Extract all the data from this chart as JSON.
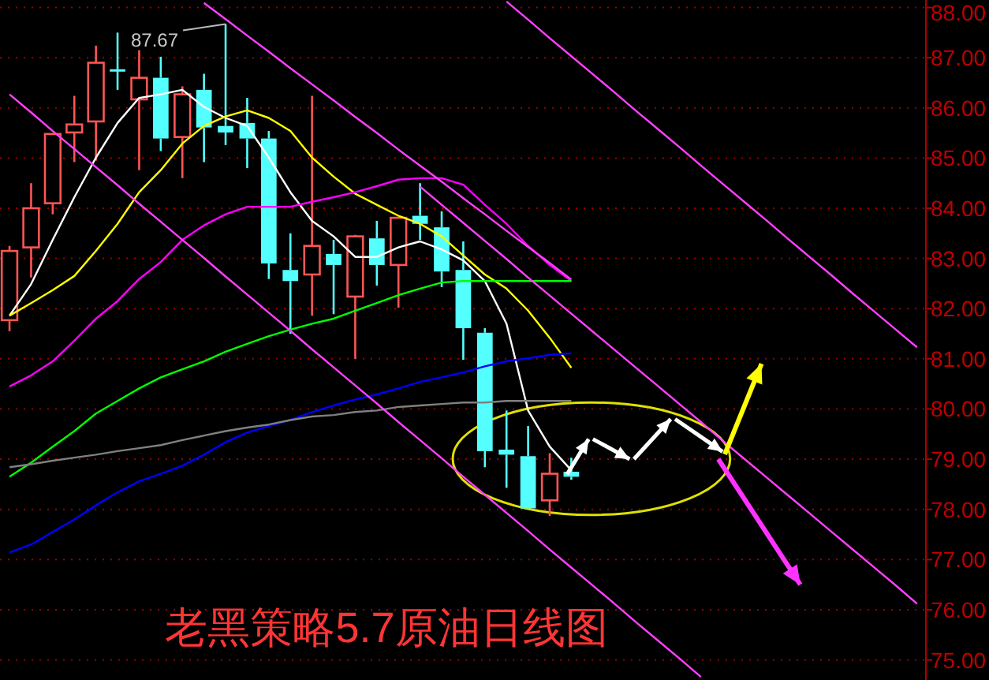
{
  "chart_data": {
    "type": "candlestick",
    "title": "老黑策略5.7原油日线图",
    "categories": [
      null,
      null,
      null,
      null,
      null,
      null,
      null,
      null,
      null,
      null,
      null,
      null,
      null,
      null,
      null,
      null,
      null,
      null,
      null,
      null,
      null,
      null,
      null,
      null,
      null,
      null,
      null,
      null,
      null,
      null,
      null,
      null,
      null,
      null,
      null,
      null,
      null,
      null,
      null,
      null,
      null,
      null,
      null
    ],
    "ohlc": [
      [
        81.77,
        83.25,
        81.55,
        83.15
      ],
      [
        83.22,
        84.5,
        82.62,
        84.0
      ],
      [
        84.1,
        85.48,
        83.88,
        85.48
      ],
      [
        85.51,
        86.24,
        84.92,
        85.67
      ],
      [
        85.73,
        87.24,
        84.95,
        86.9
      ],
      [
        86.77,
        87.5,
        86.36,
        86.77
      ],
      [
        86.17,
        87.15,
        84.76,
        86.6
      ],
      [
        86.6,
        87.02,
        85.14,
        85.39
      ],
      [
        85.42,
        86.43,
        84.6,
        86.27
      ],
      [
        86.36,
        86.68,
        84.92,
        85.61
      ],
      [
        85.64,
        87.67,
        85.26,
        85.51
      ],
      [
        85.7,
        86.2,
        84.8,
        85.39
      ],
      [
        85.39,
        85.54,
        82.59,
        82.9
      ],
      [
        82.77,
        83.5,
        81.5,
        82.55
      ],
      [
        82.68,
        86.24,
        81.86,
        83.25
      ],
      [
        83.09,
        83.37,
        81.89,
        82.87
      ],
      [
        82.24,
        83.47,
        81.0,
        83.44
      ],
      [
        83.4,
        83.75,
        82.46,
        82.87
      ],
      [
        82.87,
        83.81,
        82.02,
        83.81
      ],
      [
        83.85,
        84.5,
        83.37,
        83.69
      ],
      [
        83.62,
        83.94,
        82.43,
        82.74
      ],
      [
        82.77,
        83.34,
        80.98,
        81.61
      ],
      [
        81.52,
        81.61,
        78.84,
        79.16
      ],
      [
        79.19,
        79.97,
        78.43,
        79.09
      ],
      [
        79.06,
        79.66,
        78.02,
        78.02
      ],
      [
        78.18,
        79.12,
        77.87,
        78.71
      ],
      [
        78.75,
        79.03,
        78.59,
        78.65
      ],
      null,
      null,
      null,
      null,
      null,
      null,
      null,
      null,
      null,
      null,
      null,
      null,
      null,
      null,
      null,
      null
    ],
    "colors": [
      "#ff5555",
      "#ff5555",
      "#ff5555",
      "#ff5555",
      "#ff5555",
      "#54ffff",
      "#ff5555",
      "#54ffff",
      "#ff5555",
      "#54ffff",
      "#54ffff",
      "#54ffff",
      "#54ffff",
      "#54ffff",
      "#ff5555",
      "#54ffff",
      "#ff5555",
      "#54ffff",
      "#ff5555",
      "#54ffff",
      "#54ffff",
      "#54ffff",
      "#54ffff",
      "#54ffff",
      "#54ffff",
      "#ff5555",
      "#54ffff",
      null,
      null,
      null,
      null,
      null,
      null,
      null,
      null,
      null,
      null,
      null,
      null,
      null,
      null,
      null,
      null
    ],
    "series": [
      {
        "type": "line",
        "color": "#ffffff",
        "values": [
          81.86,
          82.49,
          83.37,
          84.22,
          85.01,
          85.7,
          86.2,
          86.27,
          86.36,
          86.02,
          85.8,
          85.64,
          85.01,
          84.32,
          83.75,
          83.44,
          83.03,
          83.03,
          83.22,
          83.34,
          83.18,
          82.96,
          82.55,
          81.7,
          79.97,
          79.25,
          78.78,
          null,
          null,
          null,
          null,
          null,
          null,
          null,
          null,
          null,
          null,
          null,
          null,
          null,
          null,
          null,
          null
        ]
      },
      {
        "type": "line",
        "color": "#ffff00",
        "values": [
          81.86,
          82.11,
          82.37,
          82.65,
          83.15,
          83.69,
          84.32,
          84.76,
          85.29,
          85.64,
          85.83,
          85.95,
          85.8,
          85.54,
          85.01,
          84.63,
          84.29,
          84.07,
          83.85,
          83.69,
          83.44,
          83.06,
          82.68,
          82.4,
          81.96,
          81.42,
          80.82,
          null,
          null,
          null,
          null,
          null,
          null,
          null,
          null,
          null,
          null,
          null,
          null,
          null,
          null,
          null,
          null
        ]
      },
      {
        "type": "line",
        "color": "#ff00ff",
        "values": [
          80.45,
          80.67,
          80.95,
          81.36,
          81.8,
          82.15,
          82.59,
          82.93,
          83.37,
          83.66,
          83.88,
          84.03,
          84.03,
          84.03,
          84.13,
          84.22,
          84.32,
          84.44,
          84.57,
          84.6,
          84.6,
          84.47,
          84.07,
          83.69,
          83.25,
          82.87,
          82.55,
          null,
          null,
          null,
          null,
          null,
          null,
          null,
          null,
          null,
          null,
          null,
          null,
          null,
          null,
          null,
          null
        ]
      },
      {
        "type": "line",
        "color": "#00ff00",
        "values": [
          78.65,
          78.93,
          79.25,
          79.56,
          79.91,
          80.16,
          80.41,
          80.63,
          80.79,
          80.95,
          81.14,
          81.3,
          81.45,
          81.58,
          81.7,
          81.8,
          81.96,
          82.11,
          82.27,
          82.4,
          82.52,
          82.55,
          82.55,
          82.55,
          82.55,
          82.55,
          82.55,
          null,
          null,
          null,
          null,
          null,
          null,
          null,
          null,
          null,
          null,
          null,
          null,
          null,
          null,
          null,
          null
        ]
      },
      {
        "type": "line",
        "color": "#0000ff",
        "values": [
          77.14,
          77.3,
          77.55,
          77.8,
          78.08,
          78.34,
          78.56,
          78.71,
          78.87,
          79.09,
          79.34,
          79.53,
          79.66,
          79.78,
          79.94,
          80.07,
          80.19,
          80.29,
          80.41,
          80.54,
          80.63,
          80.73,
          80.85,
          80.95,
          81.01,
          81.08,
          81.11,
          null,
          null,
          null,
          null,
          null,
          null,
          null,
          null,
          null,
          null,
          null,
          null,
          null,
          null,
          null,
          null
        ]
      },
      {
        "type": "line",
        "color": "#808080",
        "values": [
          78.84,
          78.9,
          78.97,
          79.03,
          79.09,
          79.16,
          79.22,
          79.28,
          79.38,
          79.47,
          79.56,
          79.63,
          79.69,
          79.78,
          79.85,
          79.88,
          79.94,
          79.97,
          80.04,
          80.07,
          80.1,
          80.13,
          80.13,
          80.16,
          80.16,
          80.16,
          80.16,
          null,
          null,
          null,
          null,
          null,
          null,
          null,
          null,
          null,
          null,
          null,
          null,
          null,
          null,
          null,
          null
        ]
      },
      {
        "type": "line",
        "color": "#ff40ff",
        "values": [
          86.27,
          85.91,
          85.54,
          85.18,
          84.82,
          84.46,
          84.09,
          83.73,
          83.37,
          83.01,
          82.64,
          82.28,
          81.92,
          81.56,
          81.19,
          80.83,
          80.47,
          80.11,
          79.74,
          79.38,
          79.02,
          78.65,
          78.29,
          77.93,
          77.57,
          77.2,
          76.84,
          76.48,
          76.12,
          75.75,
          75.39,
          75.03,
          74.66,
          null,
          null,
          null,
          null,
          null,
          null,
          null,
          null,
          null,
          null
        ]
      },
      {
        "type": "line",
        "color": "#ff40ff",
        "values": [
          null,
          null,
          null,
          null,
          null,
          null,
          null,
          null,
          null,
          88.09,
          87.77,
          87.44,
          87.12,
          86.79,
          86.47,
          86.15,
          85.82,
          85.5,
          85.17,
          84.85,
          84.53,
          84.2,
          83.88,
          83.55,
          83.23,
          82.91,
          82.58,
          null,
          null,
          null,
          null,
          null,
          null,
          null,
          null,
          null,
          null,
          null,
          null,
          null,
          null,
          null,
          null
        ]
      },
      {
        "type": "line",
        "color": "#ff40ff",
        "values": [
          null,
          null,
          null,
          null,
          null,
          null,
          null,
          null,
          null,
          null,
          null,
          null,
          null,
          null,
          null,
          null,
          null,
          null,
          null,
          84.43,
          84.07,
          83.71,
          83.35,
          82.99,
          82.62,
          82.26,
          81.9,
          81.54,
          81.18,
          80.82,
          80.46,
          80.1,
          79.74,
          79.37,
          79.01,
          78.65,
          78.29,
          77.93,
          77.57,
          77.21,
          76.85,
          76.49,
          76.12
        ]
      },
      {
        "type": "line",
        "color": "#ff40ff",
        "values": [
          null,
          null,
          null,
          null,
          null,
          null,
          null,
          null,
          null,
          null,
          null,
          null,
          null,
          null,
          null,
          null,
          null,
          null,
          null,
          null,
          null,
          null,
          null,
          88.12,
          87.76,
          87.39,
          87.03,
          86.67,
          86.31,
          85.94,
          85.58,
          85.22,
          84.85,
          84.49,
          84.13,
          83.77,
          83.4,
          83.04,
          82.68,
          82.31,
          81.95,
          81.59,
          81.23
        ]
      }
    ],
    "ylim": [
      74.6,
      88.15
    ],
    "yticks": [
      {
        "value": 75,
        "label": "75.00"
      },
      {
        "value": 76,
        "label": "76.00"
      },
      {
        "value": 77,
        "label": "77.00"
      },
      {
        "value": 78,
        "label": "78.00"
      },
      {
        "value": 79,
        "label": "79.00"
      },
      {
        "value": 80,
        "label": "80.00"
      },
      {
        "value": 81,
        "label": "81.00"
      },
      {
        "value": 82,
        "label": "82.00"
      },
      {
        "value": 83,
        "label": "83.00"
      },
      {
        "value": 84,
        "label": "84.00"
      },
      {
        "value": 85,
        "label": "85.00"
      },
      {
        "value": 86,
        "label": "86.00"
      },
      {
        "value": 87,
        "label": "87.00"
      },
      {
        "value": 88,
        "label": "88.00"
      }
    ],
    "grid": "y",
    "tick_labels": "y",
    "annotations": [
      "87.67"
    ]
  }
}
